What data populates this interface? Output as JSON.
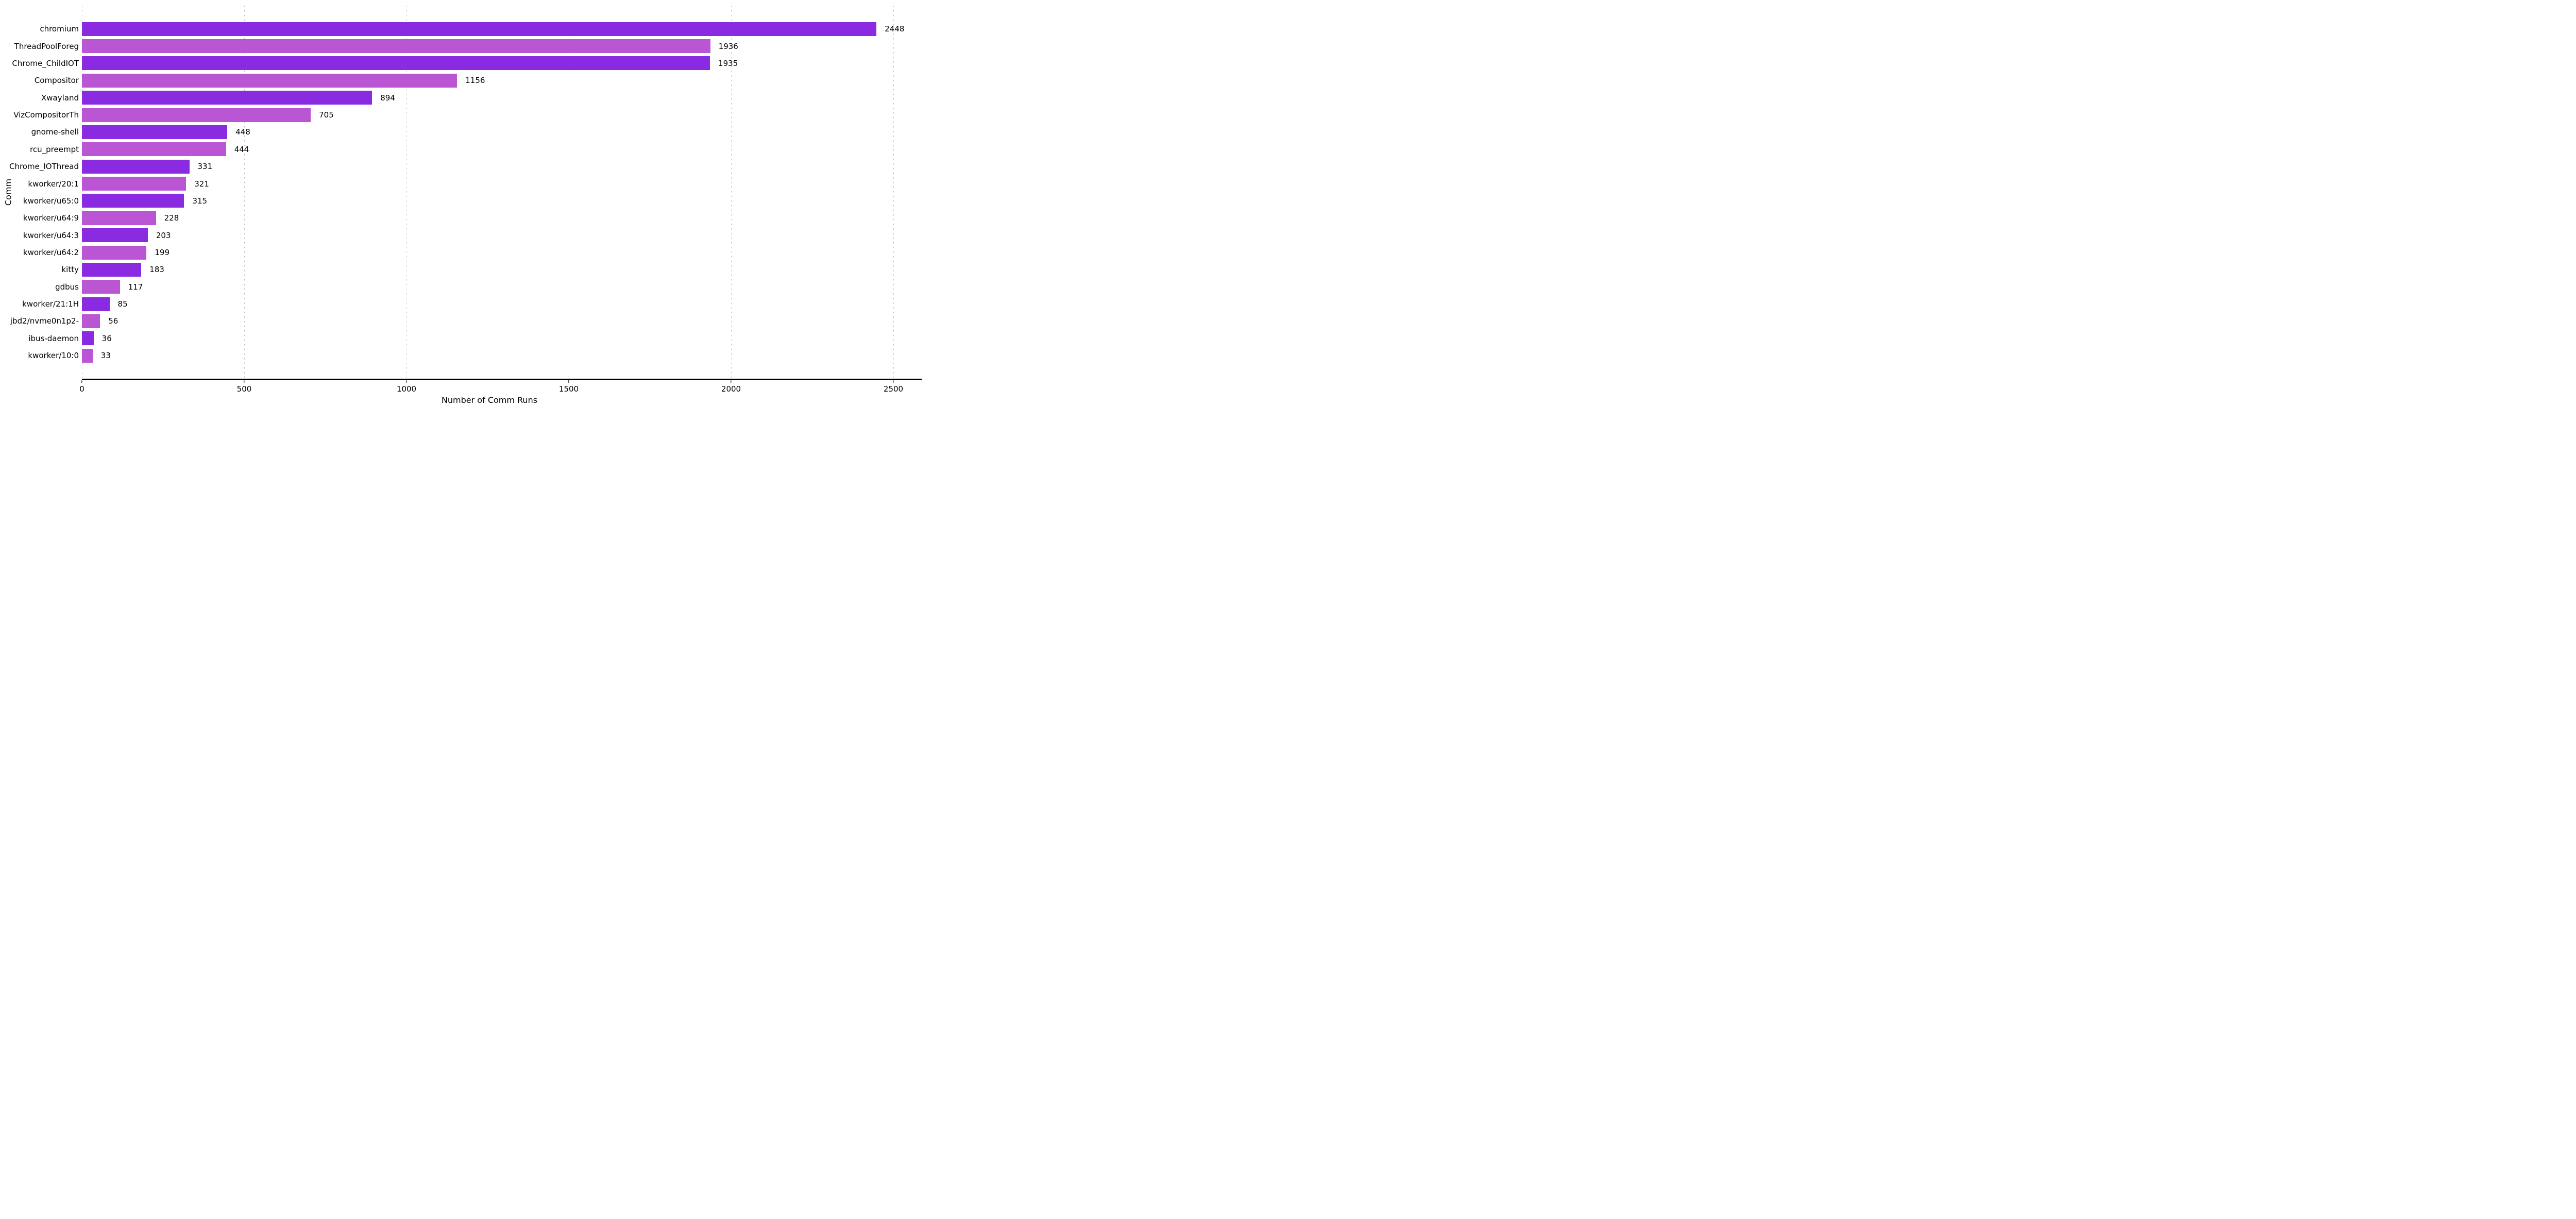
{
  "chart_data": {
    "type": "bar",
    "orientation": "horizontal",
    "title": "",
    "xlabel": "Number of Comm Runs",
    "ylabel": "Comm",
    "categories": [
      "chromium",
      "ThreadPoolForeg",
      "Chrome_ChildIOT",
      "Compositor",
      "Xwayland",
      "VizCompositorTh",
      "gnome-shell",
      "rcu_preempt",
      "Chrome_IOThread",
      "kworker/20:1",
      "kworker/u65:0",
      "kworker/u64:9",
      "kworker/u64:3",
      "kworker/u64:2",
      "kitty",
      "gdbus",
      "kworker/21:1H",
      "jbd2/nvme0n1p2-",
      "ibus-daemon",
      "kworker/10:0"
    ],
    "values": [
      2448,
      1936,
      1935,
      1156,
      894,
      705,
      448,
      444,
      331,
      321,
      315,
      228,
      203,
      199,
      183,
      117,
      85,
      56,
      36,
      33
    ],
    "value_labels": [
      "2448",
      "1936",
      "1935",
      "1156",
      "894",
      "705",
      "448",
      "444",
      "331",
      "321",
      "315",
      "228",
      "203",
      "199",
      "183",
      "117",
      "85",
      "56",
      "36",
      "33"
    ],
    "xlim": [
      0,
      2500
    ],
    "xticks": [
      0,
      500,
      1000,
      1500,
      2000,
      2500
    ],
    "grid": {
      "vertical": true,
      "style": "dotted",
      "color": "#b9b9b9"
    },
    "legend": null,
    "colors": {
      "bar_alternate_dark": "#8a2be2",
      "bar_alternate_light": "#ba55d3",
      "text": "#000000",
      "axis_line": "#000000",
      "background": "#ffffff"
    }
  }
}
